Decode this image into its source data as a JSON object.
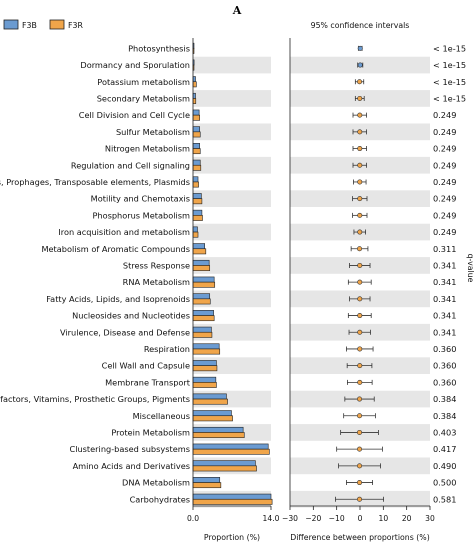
{
  "panel_label": "A",
  "ci_title": "95% confidence intervals",
  "legend": [
    {
      "name": "F3B",
      "color": "#6b9bd1"
    },
    {
      "name": "F3R",
      "color": "#f0a54a"
    }
  ],
  "colors": {
    "stripe": "#e6e6e6",
    "bar_edge": "#222222",
    "ci_line": "#333333"
  },
  "chart_data": [
    {
      "type": "bar",
      "orientation": "horizontal",
      "categories": [
        "Photosynthesis",
        "Dormancy and Sporulation",
        "Potassium metabolism",
        "Secondary Metabolism",
        "Cell Division and Cell Cycle",
        "Sulfur Metabolism",
        "Nitrogen Metabolism",
        "Regulation and Cell signaling",
        "Phages, Prophages, Transposable elements, Plasmids",
        "Motility and Chemotaxis",
        "Phosphorus Metabolism",
        "Iron acquisition and metabolism",
        "Metabolism of Aromatic Compounds",
        "Stress Response",
        "RNA Metabolism",
        "Fatty Acids, Lipids, and Isoprenoids",
        "Nucleosides and Nucleotides",
        "Virulence, Disease and Defense",
        "Respiration",
        "Cell Wall and Capsule",
        "Membrane Transport",
        "Cofactors, Vitamins, Prosthetic Groups, Pigments",
        "Miscellaneous",
        "Protein Metabolism",
        "Clustering-based subsystems",
        "Amino Acids and Derivatives",
        "DNA Metabolism",
        "Carbohydrates"
      ],
      "series": [
        {
          "name": "F3B",
          "values": [
            0.15,
            0.2,
            0.45,
            0.45,
            1.1,
            1.2,
            1.2,
            1.3,
            0.9,
            1.5,
            1.6,
            0.8,
            2.1,
            2.9,
            3.8,
            3.0,
            3.7,
            3.3,
            4.7,
            4.2,
            4.1,
            6.0,
            6.9,
            9.0,
            13.5,
            11.2,
            4.8,
            14.0
          ]
        },
        {
          "name": "F3R",
          "values": [
            0.1,
            0.15,
            0.6,
            0.5,
            1.2,
            1.3,
            1.3,
            1.4,
            1.0,
            1.6,
            1.7,
            0.9,
            2.3,
            3.0,
            3.9,
            3.1,
            3.8,
            3.4,
            4.8,
            4.3,
            4.2,
            6.2,
            7.1,
            9.2,
            13.7,
            11.4,
            5.0,
            14.2
          ]
        }
      ],
      "xlabel": "Proportion (%)",
      "ticks": [
        0.0,
        14.0
      ],
      "xlim": [
        0,
        14.0
      ]
    },
    {
      "type": "scatter",
      "title": "95% confidence intervals",
      "xlabel": "Difference between proportions (%)",
      "xlim": [
        -30,
        30
      ],
      "ticks": [
        -30,
        -20,
        -10,
        0,
        10,
        20,
        30
      ],
      "mean_diff": [
        0.1,
        0.1,
        -0.2,
        -0.1,
        -0.1,
        -0.1,
        -0.1,
        -0.1,
        -0.1,
        -0.1,
        -0.1,
        -0.1,
        -0.2,
        -0.1,
        -0.1,
        -0.1,
        -0.1,
        -0.1,
        -0.1,
        -0.1,
        -0.1,
        -0.2,
        -0.2,
        -0.2,
        -0.2,
        -0.2,
        -0.2,
        -0.2
      ],
      "ci_low": [
        -0.7,
        -1.0,
        -2.0,
        -2.0,
        -3.0,
        -3.0,
        -3.0,
        -3.0,
        -2.8,
        -3.2,
        -3.2,
        -2.6,
        -3.8,
        -4.5,
        -5.0,
        -4.5,
        -5.0,
        -4.7,
        -5.8,
        -5.5,
        -5.4,
        -6.5,
        -7.0,
        -8.3,
        -10.0,
        -9.2,
        -5.8,
        -10.5
      ],
      "ci_high": [
        0.9,
        1.2,
        1.6,
        1.8,
        2.8,
        2.8,
        2.8,
        2.8,
        2.6,
        3.0,
        3.0,
        2.4,
        3.4,
        4.3,
        4.8,
        4.3,
        4.8,
        4.5,
        5.6,
        5.1,
        5.2,
        6.1,
        6.6,
        7.9,
        9.6,
        8.8,
        5.4,
        10.1
      ],
      "pvalue_label": "q-value",
      "pvalues": [
        "< 1e-15",
        "< 1e-15",
        "< 1e-15",
        "< 1e-15",
        "0.249",
        "0.249",
        "0.249",
        "0.249",
        "0.249",
        "0.249",
        "0.249",
        "0.249",
        "0.311",
        "0.341",
        "0.341",
        "0.341",
        "0.341",
        "0.341",
        "0.360",
        "0.360",
        "0.360",
        "0.384",
        "0.384",
        "0.403",
        "0.417",
        "0.490",
        "0.500",
        "0.581"
      ]
    }
  ]
}
